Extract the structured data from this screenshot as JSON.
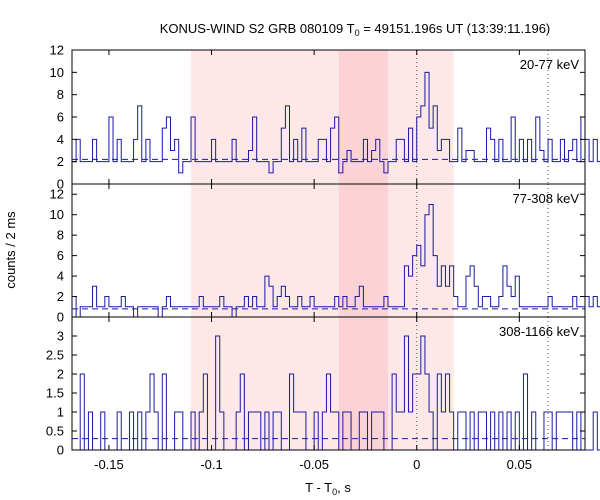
{
  "chart_data": {
    "type": "histogram",
    "title_main": "KONUS-WIND S2 GRB 080109 T",
    "title_sub": "0",
    "title_rest": " = 49151.196s UT (13:39:11.196)",
    "xlabel_main": "T - T",
    "xlabel_sub": "0",
    "xlabel_rest": ", s",
    "ylabel": "counts / 2 ms",
    "xlim": [
      -0.168,
      0.082
    ],
    "bin_width": 0.002,
    "x_ticks": [
      -0.15,
      -0.1,
      -0.05,
      0,
      0.05
    ],
    "x_tick_labels": [
      "-0.15",
      "-0.1",
      "-0.05",
      "0",
      "0.05"
    ],
    "dotted_lines": [
      0,
      0.064
    ],
    "shaded_regions": [
      {
        "x0": -0.11,
        "x1": 0.018,
        "color": "#fde7e7"
      },
      {
        "x0": -0.038,
        "x1": -0.014,
        "color": "#fbd3d6"
      }
    ],
    "panels": [
      {
        "label": "20-77 keV",
        "ylim": [
          0,
          12
        ],
        "yticks": [
          0,
          2,
          4,
          6,
          8,
          10,
          12
        ],
        "ytick_labels": [
          "0",
          "2",
          "4",
          "6",
          "8",
          "10",
          "12"
        ],
        "background": 2.2,
        "counts": [
          2,
          4,
          2,
          2,
          2,
          4,
          2,
          2,
          2,
          6,
          2,
          4,
          2,
          2,
          2,
          4,
          7,
          2,
          4,
          2,
          2,
          2,
          5,
          6,
          3,
          4,
          1,
          2,
          2,
          6,
          2,
          2,
          2,
          2,
          4,
          2,
          2,
          2,
          2,
          4,
          2,
          2,
          2,
          3,
          6,
          2,
          2,
          2,
          1,
          2,
          2,
          5,
          7,
          2,
          4,
          2,
          5,
          2,
          2,
          2,
          4,
          4,
          2,
          5,
          6,
          1,
          2,
          3,
          2,
          2,
          2,
          4,
          2,
          3,
          4,
          2,
          1,
          2,
          2,
          4,
          4,
          2,
          5,
          2,
          6,
          7,
          10,
          5,
          7,
          3,
          4,
          4,
          2,
          2,
          5,
          2,
          3,
          3,
          2,
          2,
          2,
          5,
          4,
          2,
          4,
          2,
          2,
          6,
          2,
          4,
          2,
          4,
          2,
          6,
          3,
          2,
          4,
          2,
          2,
          4,
          2,
          3,
          4,
          2,
          6,
          4,
          2,
          4,
          2,
          2,
          2,
          4,
          3,
          2,
          4,
          2,
          2,
          3,
          2,
          4,
          2,
          2,
          6,
          5,
          2,
          6
        ]
      },
      {
        "label": "77-308 keV",
        "ylim": [
          0,
          13
        ],
        "yticks": [
          0,
          2,
          4,
          6,
          8,
          10,
          12
        ],
        "ytick_labels": [
          "0",
          "2",
          "4",
          "6",
          "8",
          "10",
          "12"
        ],
        "background": 0.8,
        "counts": [
          2,
          0,
          1,
          1,
          1,
          3,
          1,
          1,
          2,
          1,
          1,
          1,
          2,
          1,
          1,
          0,
          1,
          1,
          1,
          1,
          1,
          0,
          1,
          2,
          1,
          1,
          1,
          1,
          1,
          1,
          1,
          2,
          1,
          1,
          1,
          1,
          2,
          1,
          1,
          0,
          1,
          1,
          2,
          1,
          2,
          1,
          1,
          4,
          3,
          1,
          2,
          3,
          2,
          1,
          1,
          2,
          1,
          1,
          2,
          1,
          1,
          1,
          1,
          1,
          2,
          1,
          2,
          1,
          1,
          2,
          3,
          1,
          1,
          1,
          1,
          1,
          2,
          1,
          1,
          1,
          1,
          5,
          4,
          6,
          7,
          5,
          10,
          11,
          6,
          3,
          5,
          3,
          5,
          2,
          1,
          1,
          4,
          5,
          3,
          1,
          2,
          2,
          1,
          1,
          2,
          5,
          3,
          2,
          4,
          1,
          1,
          1,
          1,
          1,
          1,
          1,
          2,
          1,
          1,
          1,
          1,
          1,
          2,
          1,
          1,
          2,
          1,
          2,
          1,
          1,
          1,
          1,
          2,
          1,
          1,
          1,
          2,
          1,
          1,
          1,
          1,
          1,
          1,
          1,
          2,
          1
        ]
      },
      {
        "label": "308-1166 keV",
        "ylim": [
          0,
          3.5
        ],
        "yticks": [
          0,
          0.5,
          1,
          1.5,
          2,
          2.5,
          3
        ],
        "ytick_labels": [
          "0",
          "0.5",
          "1",
          "1.5",
          "2",
          "2.5",
          "3"
        ],
        "background": 0.3,
        "counts": [
          0,
          0,
          2,
          0,
          1,
          0,
          0,
          1,
          0,
          0,
          0,
          1,
          0,
          0,
          1,
          0,
          1,
          0,
          1,
          2,
          1,
          0,
          2,
          0,
          0,
          1,
          1,
          0,
          0,
          1,
          0,
          1,
          2,
          0,
          0,
          3,
          1,
          0,
          0,
          0,
          1,
          2,
          0,
          1,
          1,
          1,
          0,
          1,
          0,
          1,
          1,
          0,
          0,
          2,
          1,
          1,
          1,
          0,
          0,
          1,
          0,
          1,
          2,
          1,
          1,
          0,
          1,
          1,
          0,
          0,
          1,
          1,
          0,
          1,
          1,
          1,
          0,
          0,
          2,
          1,
          1,
          3,
          1,
          2,
          2,
          3,
          2,
          1,
          0,
          2,
          1,
          2,
          1,
          0,
          1,
          1,
          0,
          1,
          0,
          1,
          1,
          0,
          1,
          0,
          1,
          0,
          1,
          0,
          1,
          0,
          2,
          0,
          1,
          0,
          0,
          1,
          1,
          0,
          1,
          1,
          1,
          1,
          0,
          1,
          0,
          0,
          0,
          1,
          0,
          0,
          1,
          0,
          1,
          2,
          0,
          1,
          0,
          0,
          1,
          1,
          0,
          1,
          0,
          0,
          1,
          0
        ]
      }
    ]
  }
}
